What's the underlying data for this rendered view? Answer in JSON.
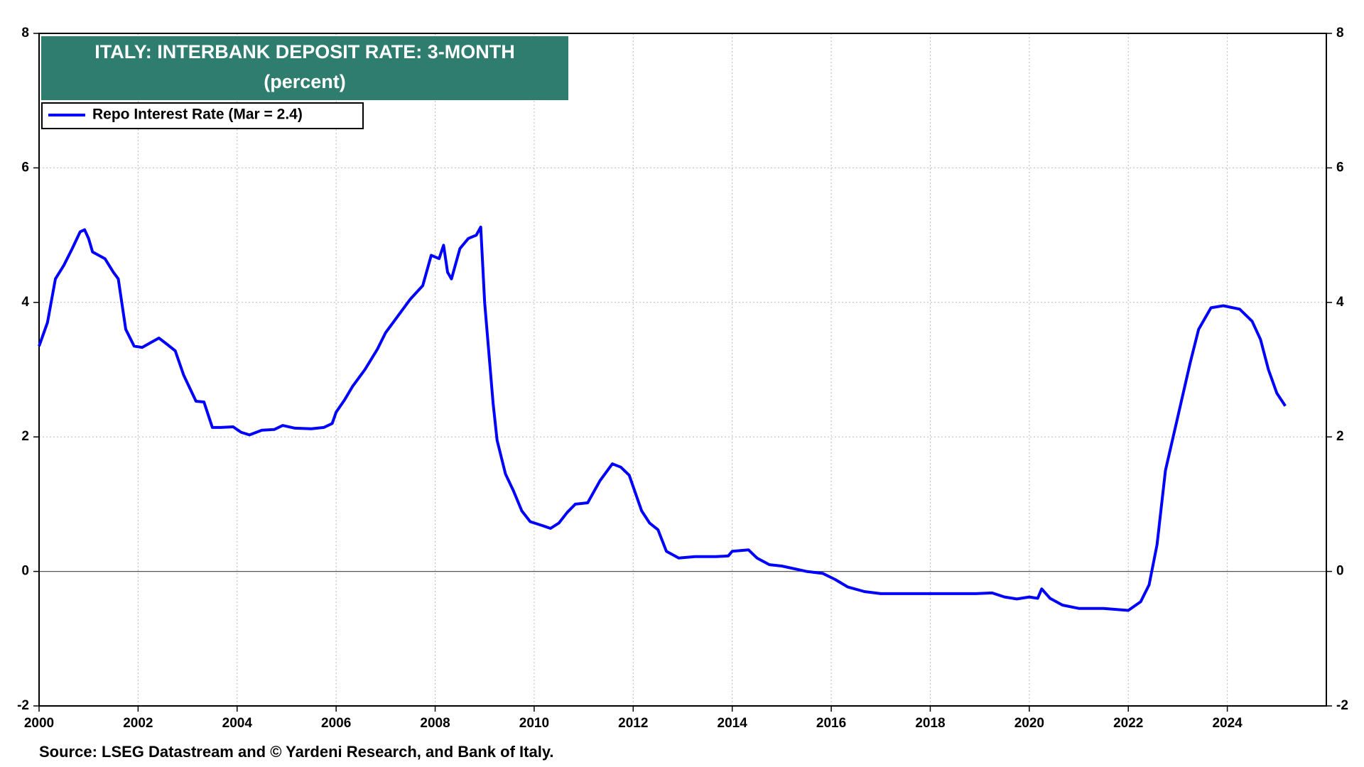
{
  "chart_data": {
    "type": "line",
    "title": "ITALY: INTERBANK DEPOSIT RATE: 3-MONTH",
    "subtitle": "(percent)",
    "source": "Source: LSEG Datastream and © Yardeni Research, and Bank of Italy.",
    "x": [
      2000.0,
      2000.17,
      2000.33,
      2000.5,
      2000.67,
      2000.83,
      2000.92,
      2001.0,
      2001.08,
      2001.33,
      2001.5,
      2001.6,
      2001.75,
      2001.92,
      2002.08,
      2002.25,
      2002.42,
      2002.58,
      2002.75,
      2002.92,
      2003.17,
      2003.33,
      2003.5,
      2003.67,
      2003.92,
      2004.08,
      2004.25,
      2004.5,
      2004.75,
      2004.92,
      2005.17,
      2005.5,
      2005.75,
      2005.92,
      2006.0,
      2006.17,
      2006.33,
      2006.58,
      2006.83,
      2007.0,
      2007.25,
      2007.5,
      2007.75,
      2007.92,
      2008.08,
      2008.17,
      2008.25,
      2008.33,
      2008.5,
      2008.67,
      2008.83,
      2008.92,
      2009.0,
      2009.17,
      2009.25,
      2009.42,
      2009.58,
      2009.75,
      2009.92,
      2010.17,
      2010.33,
      2010.5,
      2010.67,
      2010.83,
      2011.08,
      2011.33,
      2011.58,
      2011.75,
      2011.92,
      2012.17,
      2012.33,
      2012.5,
      2012.67,
      2012.92,
      2013.25,
      2013.67,
      2013.92,
      2014.0,
      2014.33,
      2014.5,
      2014.75,
      2015.0,
      2015.5,
      2015.83,
      2016.08,
      2016.33,
      2016.67,
      2017.0,
      2018.0,
      2018.92,
      2019.25,
      2019.5,
      2019.75,
      2020.0,
      2020.17,
      2020.25,
      2020.42,
      2020.67,
      2021.0,
      2021.5,
      2022.0,
      2022.25,
      2022.42,
      2022.58,
      2022.75,
      2023.0,
      2023.25,
      2023.42,
      2023.67,
      2023.92,
      2024.25,
      2024.5,
      2024.67,
      2024.83,
      2025.0,
      2025.17
    ],
    "series": [
      {
        "name": "Repo Interest Rate (Mar = 2.4)",
        "color": "#0000ff",
        "values": [
          3.35,
          3.7,
          4.35,
          4.55,
          4.8,
          5.05,
          5.08,
          4.95,
          4.75,
          4.65,
          4.45,
          4.35,
          3.6,
          3.35,
          3.33,
          3.4,
          3.47,
          3.38,
          3.28,
          2.92,
          2.53,
          2.52,
          2.14,
          2.14,
          2.15,
          2.07,
          2.03,
          2.1,
          2.11,
          2.17,
          2.13,
          2.12,
          2.14,
          2.2,
          2.37,
          2.55,
          2.75,
          3.0,
          3.3,
          3.55,
          3.8,
          4.05,
          4.25,
          4.7,
          4.65,
          4.85,
          4.45,
          4.35,
          4.8,
          4.95,
          5.0,
          5.12,
          4.0,
          2.5,
          1.95,
          1.45,
          1.2,
          0.9,
          0.74,
          0.68,
          0.64,
          0.72,
          0.88,
          1.0,
          1.02,
          1.35,
          1.6,
          1.55,
          1.43,
          0.9,
          0.72,
          0.62,
          0.3,
          0.2,
          0.22,
          0.22,
          0.23,
          0.3,
          0.32,
          0.2,
          0.1,
          0.08,
          0.0,
          -0.03,
          -0.12,
          -0.23,
          -0.3,
          -0.33,
          -0.33,
          -0.33,
          -0.32,
          -0.38,
          -0.41,
          -0.38,
          -0.4,
          -0.26,
          -0.4,
          -0.5,
          -0.55,
          -0.55,
          -0.58,
          -0.45,
          -0.2,
          0.4,
          1.5,
          2.3,
          3.1,
          3.6,
          3.92,
          3.95,
          3.9,
          3.72,
          3.45,
          3.0,
          2.65,
          2.46
        ]
      }
    ],
    "xlim": [
      2000,
      2026
    ],
    "xticks": [
      2000,
      2002,
      2004,
      2006,
      2008,
      2010,
      2012,
      2014,
      2016,
      2018,
      2020,
      2022,
      2024
    ],
    "ylim": [
      -2,
      8
    ],
    "yticks": [
      -2,
      0,
      2,
      4,
      6,
      8
    ],
    "grid": true
  }
}
